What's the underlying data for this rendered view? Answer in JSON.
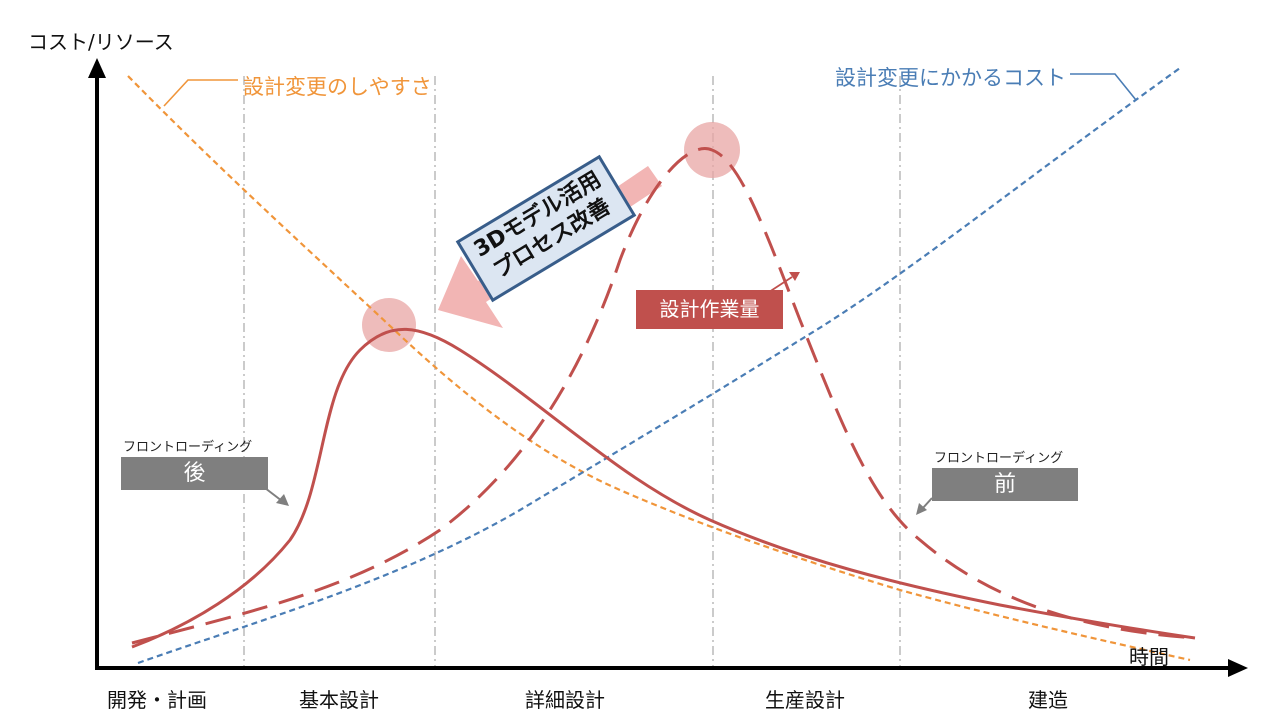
{
  "axes": {
    "y_title": "コスト/リソース",
    "x_title": "時間"
  },
  "phases": [
    "開発・計画",
    "基本設計",
    "詳細設計",
    "生産設計",
    "建造"
  ],
  "curve_labels": {
    "ease_of_change": "設計変更のしやすさ",
    "cost_of_change": "設計変更にかかるコスト",
    "design_workload": "設計作業量"
  },
  "callout": {
    "line1": "3Dモデル活用",
    "line2": "プロセス改善"
  },
  "front_loading_after": {
    "small": "フロントローディング",
    "big": "後"
  },
  "front_loading_before": {
    "small": "フロントローディング",
    "big": "前"
  },
  "colors": {
    "ease_of_change": "#F0953A",
    "cost_of_change": "#4A7DB5",
    "workload": "#C0504D",
    "peak_highlight": "#E8A6A4",
    "improvement_arrow": "#F2B5B4",
    "label_box": "#7F7F7F",
    "callout_fill": "#DCE6F2",
    "callout_border": "#385D8A"
  }
}
